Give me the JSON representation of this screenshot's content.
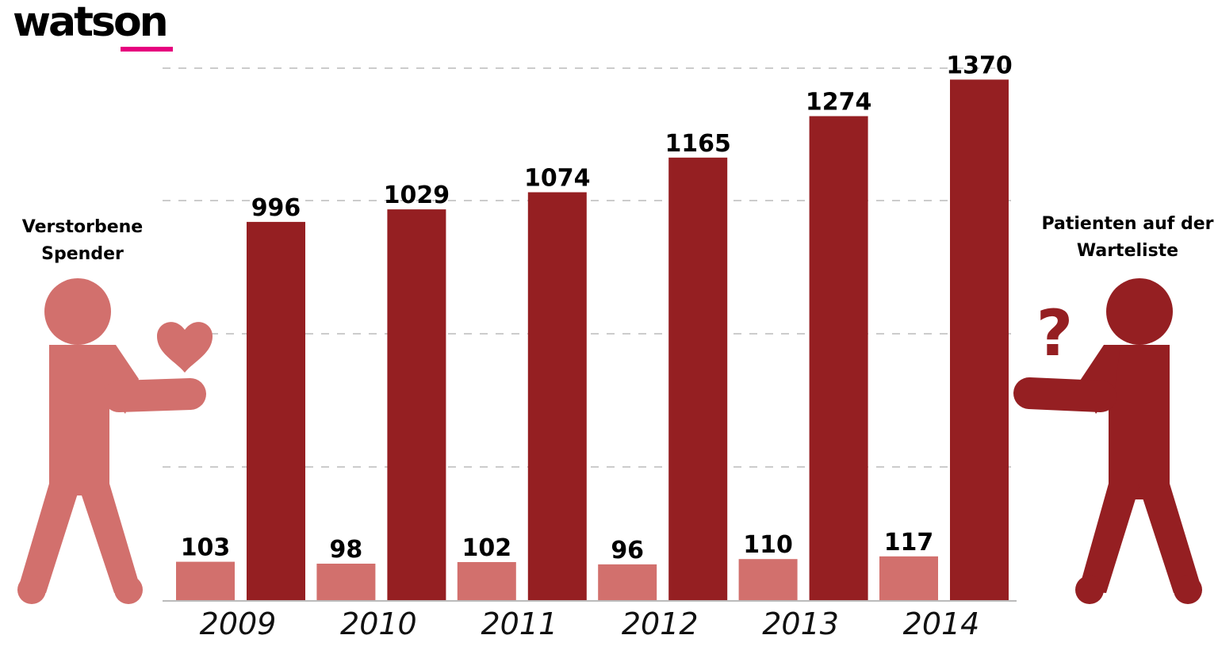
{
  "brand": {
    "logo_text": "watson",
    "accent_color": "#e6007e"
  },
  "labels": {
    "left_figure": "Verstorbene Spender",
    "right_figure": "Patienten auf der Warteliste"
  },
  "icons": {
    "left_figure": "donor-person-heart-icon",
    "right_figure": "patient-person-question-icon"
  },
  "colors": {
    "donors": "#d2706d",
    "waiting": "#951f22",
    "grid": "#bbbbbb"
  },
  "chart_data": {
    "type": "bar",
    "categories": [
      "2009",
      "2010",
      "2011",
      "2012",
      "2013",
      "2014"
    ],
    "series": [
      {
        "values": [
          103,
          98,
          102,
          96,
          110,
          117
        ],
        "color": "#d2706d"
      },
      {
        "values": [
          996,
          1029,
          1074,
          1165,
          1274,
          1370
        ],
        "color": "#951f22"
      }
    ],
    "ylim": [
      0,
      1400
    ],
    "grid": true
  }
}
